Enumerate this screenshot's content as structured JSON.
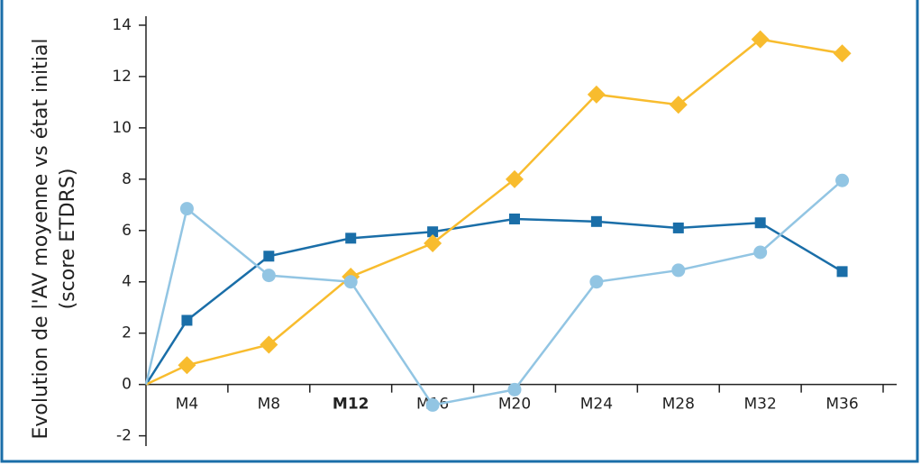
{
  "chart_data": {
    "type": "line",
    "y_label": [
      "Evolution de l'AV moyenne vs état initial",
      "(score ETDRS)"
    ],
    "categories": [
      null,
      "M4",
      "M8",
      "M12",
      "M16",
      "M20",
      "M24",
      "M28",
      "M32",
      "M36"
    ],
    "highlight": {
      "category": 3,
      "color": "#1a6ea8"
    },
    "series": [
      {
        "color": "#1a6ea8",
        "marker": "square",
        "values": [
          0,
          2.5,
          5.0,
          5.7,
          5.95,
          6.45,
          6.35,
          6.1,
          6.3,
          4.4
        ]
      },
      {
        "color": "#f8bc2e",
        "marker": "diamond",
        "values": [
          0,
          0.75,
          1.55,
          4.2,
          5.5,
          8.0,
          11.3,
          10.9,
          13.45,
          12.9
        ]
      },
      {
        "color": "#92c5e3",
        "marker": "circle",
        "values": [
          0,
          6.85,
          4.25,
          4.0,
          -0.8,
          -0.2,
          4.0,
          4.45,
          5.15,
          7.95
        ]
      }
    ],
    "ylim": [
      -2.4,
      14.35
    ],
    "yticks": [
      -2,
      0,
      2,
      4,
      6,
      8,
      10,
      12,
      14
    ]
  }
}
